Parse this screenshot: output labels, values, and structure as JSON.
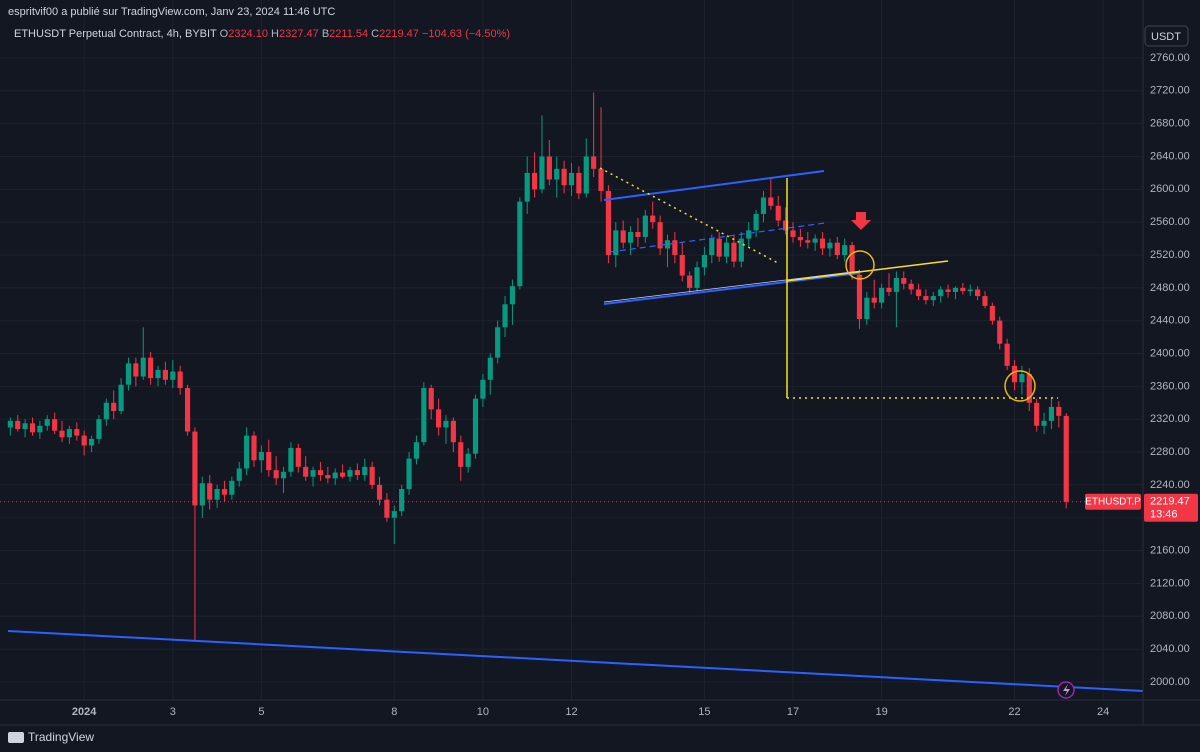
{
  "header": {
    "published": "espritvif00 a publié sur TradingView.com, Janv 23, 2024 11:46 UTC",
    "symbol": "ETHUSDT Perpetual Contract, 4h, BYBIT",
    "legend": [
      {
        "key": "O",
        "value": "2324.10"
      },
      {
        "key": "H",
        "value": "2327.47"
      },
      {
        "key": "B",
        "value": "2211.54"
      },
      {
        "key": "C",
        "value": "2219.47"
      }
    ],
    "change": "−104.63 (−4.50%)",
    "currency": "USDT"
  },
  "footer": {
    "brand": "TradingView"
  },
  "price_tag": {
    "symbol": "ETHUSDT.P",
    "price": "2219.47",
    "countdown": "13:46"
  },
  "chart_data": {
    "type": "candlestick",
    "up_color": "#089981",
    "down_color": "#f23645",
    "ohlc": [
      [
        2310,
        2322,
        2300,
        2318
      ],
      [
        2318,
        2325,
        2305,
        2308
      ],
      [
        2308,
        2320,
        2298,
        2315
      ],
      [
        2315,
        2322,
        2300,
        2304
      ],
      [
        2304,
        2318,
        2296,
        2312
      ],
      [
        2312,
        2325,
        2306,
        2320
      ],
      [
        2320,
        2328,
        2302,
        2306
      ],
      [
        2306,
        2318,
        2292,
        2298
      ],
      [
        2298,
        2312,
        2290,
        2308
      ],
      [
        2308,
        2316,
        2294,
        2300
      ],
      [
        2300,
        2306,
        2276,
        2288
      ],
      [
        2288,
        2300,
        2280,
        2296
      ],
      [
        2296,
        2325,
        2290,
        2320
      ],
      [
        2320,
        2345,
        2312,
        2340
      ],
      [
        2340,
        2355,
        2320,
        2330
      ],
      [
        2330,
        2370,
        2326,
        2362
      ],
      [
        2362,
        2395,
        2355,
        2388
      ],
      [
        2388,
        2395,
        2360,
        2372
      ],
      [
        2372,
        2432,
        2368,
        2395
      ],
      [
        2395,
        2402,
        2362,
        2370
      ],
      [
        2370,
        2385,
        2360,
        2380
      ],
      [
        2380,
        2390,
        2362,
        2368
      ],
      [
        2368,
        2392,
        2358,
        2378
      ],
      [
        2378,
        2385,
        2350,
        2358
      ],
      [
        2358,
        2362,
        2300,
        2305
      ],
      [
        2305,
        2310,
        2050,
        2215
      ],
      [
        2215,
        2250,
        2200,
        2242
      ],
      [
        2242,
        2252,
        2210,
        2222
      ],
      [
        2222,
        2240,
        2212,
        2235
      ],
      [
        2235,
        2245,
        2220,
        2228
      ],
      [
        2228,
        2250,
        2222,
        2245
      ],
      [
        2245,
        2268,
        2238,
        2260
      ],
      [
        2260,
        2310,
        2252,
        2300
      ],
      [
        2300,
        2305,
        2262,
        2270
      ],
      [
        2270,
        2288,
        2255,
        2280
      ],
      [
        2280,
        2295,
        2250,
        2258
      ],
      [
        2258,
        2275,
        2240,
        2248
      ],
      [
        2248,
        2262,
        2230,
        2256
      ],
      [
        2256,
        2292,
        2250,
        2285
      ],
      [
        2285,
        2290,
        2255,
        2262
      ],
      [
        2262,
        2275,
        2245,
        2250
      ],
      [
        2250,
        2262,
        2238,
        2258
      ],
      [
        2258,
        2268,
        2245,
        2252
      ],
      [
        2252,
        2262,
        2242,
        2248
      ],
      [
        2248,
        2260,
        2240,
        2255
      ],
      [
        2255,
        2265,
        2248,
        2250
      ],
      [
        2250,
        2262,
        2244,
        2258
      ],
      [
        2258,
        2266,
        2246,
        2252
      ],
      [
        2252,
        2272,
        2245,
        2262
      ],
      [
        2262,
        2268,
        2235,
        2240
      ],
      [
        2240,
        2250,
        2215,
        2222
      ],
      [
        2222,
        2230,
        2195,
        2200
      ],
      [
        2200,
        2215,
        2168,
        2208
      ],
      [
        2208,
        2240,
        2202,
        2235
      ],
      [
        2235,
        2280,
        2228,
        2272
      ],
      [
        2272,
        2300,
        2265,
        2292
      ],
      [
        2292,
        2365,
        2288,
        2358
      ],
      [
        2358,
        2362,
        2320,
        2332
      ],
      [
        2332,
        2345,
        2300,
        2310
      ],
      [
        2310,
        2325,
        2290,
        2318
      ],
      [
        2318,
        2322,
        2280,
        2292
      ],
      [
        2292,
        2300,
        2245,
        2262
      ],
      [
        2262,
        2285,
        2255,
        2278
      ],
      [
        2278,
        2350,
        2272,
        2345
      ],
      [
        2345,
        2375,
        2335,
        2368
      ],
      [
        2368,
        2400,
        2350,
        2395
      ],
      [
        2395,
        2440,
        2388,
        2432
      ],
      [
        2432,
        2470,
        2420,
        2460
      ],
      [
        2460,
        2490,
        2435,
        2482
      ],
      [
        2482,
        2590,
        2478,
        2585
      ],
      [
        2585,
        2640,
        2570,
        2620
      ],
      [
        2620,
        2645,
        2590,
        2600
      ],
      [
        2600,
        2690,
        2595,
        2640
      ],
      [
        2640,
        2660,
        2605,
        2612
      ],
      [
        2612,
        2640,
        2590,
        2625
      ],
      [
        2625,
        2635,
        2595,
        2605
      ],
      [
        2605,
        2632,
        2592,
        2620
      ],
      [
        2620,
        2628,
        2588,
        2595
      ],
      [
        2595,
        2662,
        2590,
        2640
      ],
      [
        2640,
        2718,
        2615,
        2625
      ],
      [
        2625,
        2700,
        2585,
        2598
      ],
      [
        2598,
        2605,
        2510,
        2520
      ],
      [
        2520,
        2560,
        2505,
        2550
      ],
      [
        2550,
        2562,
        2528,
        2535
      ],
      [
        2535,
        2555,
        2520,
        2548
      ],
      [
        2548,
        2565,
        2530,
        2542
      ],
      [
        2542,
        2575,
        2535,
        2568
      ],
      [
        2568,
        2585,
        2552,
        2560
      ],
      [
        2560,
        2568,
        2520,
        2528
      ],
      [
        2528,
        2545,
        2505,
        2538
      ],
      [
        2538,
        2548,
        2510,
        2520
      ],
      [
        2520,
        2535,
        2488,
        2495
      ],
      [
        2495,
        2500,
        2472,
        2480
      ],
      [
        2480,
        2512,
        2474,
        2505
      ],
      [
        2505,
        2530,
        2495,
        2520
      ],
      [
        2520,
        2545,
        2510,
        2540
      ],
      [
        2540,
        2548,
        2512,
        2518
      ],
      [
        2518,
        2542,
        2510,
        2535
      ],
      [
        2535,
        2545,
        2505,
        2512
      ],
      [
        2512,
        2548,
        2505,
        2540
      ],
      [
        2540,
        2560,
        2530,
        2550
      ],
      [
        2550,
        2575,
        2542,
        2570
      ],
      [
        2570,
        2598,
        2560,
        2590
      ],
      [
        2590,
        2615,
        2575,
        2580
      ],
      [
        2580,
        2592,
        2555,
        2562
      ],
      [
        2562,
        2578,
        2545,
        2550
      ],
      [
        2550,
        2560,
        2535,
        2542
      ],
      [
        2542,
        2552,
        2530,
        2538
      ],
      [
        2538,
        2548,
        2528,
        2535
      ],
      [
        2535,
        2545,
        2525,
        2540
      ],
      [
        2540,
        2548,
        2520,
        2528
      ],
      [
        2528,
        2540,
        2518,
        2535
      ],
      [
        2535,
        2542,
        2515,
        2520
      ],
      [
        2520,
        2540,
        2512,
        2532
      ],
      [
        2532,
        2536,
        2490,
        2496
      ],
      [
        2496,
        2502,
        2430,
        2442
      ],
      [
        2442,
        2475,
        2435,
        2468
      ],
      [
        2468,
        2490,
        2455,
        2462
      ],
      [
        2462,
        2485,
        2455,
        2480
      ],
      [
        2480,
        2498,
        2470,
        2475
      ],
      [
        2475,
        2500,
        2432,
        2492
      ],
      [
        2492,
        2500,
        2478,
        2485
      ],
      [
        2485,
        2490,
        2472,
        2478
      ],
      [
        2478,
        2485,
        2465,
        2470
      ],
      [
        2470,
        2478,
        2460,
        2465
      ],
      [
        2465,
        2475,
        2458,
        2470
      ],
      [
        2470,
        2482,
        2462,
        2478
      ],
      [
        2478,
        2484,
        2468,
        2475
      ],
      [
        2475,
        2482,
        2466,
        2480
      ],
      [
        2480,
        2486,
        2472,
        2476
      ],
      [
        2476,
        2484,
        2470,
        2478
      ],
      [
        2478,
        2482,
        2465,
        2470
      ],
      [
        2470,
        2476,
        2455,
        2458
      ],
      [
        2458,
        2462,
        2435,
        2440
      ],
      [
        2440,
        2445,
        2405,
        2412
      ],
      [
        2412,
        2418,
        2380,
        2385
      ],
      [
        2385,
        2392,
        2355,
        2365
      ],
      [
        2365,
        2385,
        2350,
        2375
      ],
      [
        2375,
        2382,
        2330,
        2340
      ],
      [
        2340,
        2345,
        2305,
        2312
      ],
      [
        2312,
        2328,
        2302,
        2318
      ],
      [
        2318,
        2345,
        2308,
        2335
      ],
      [
        2335,
        2342,
        2310,
        2324.1
      ],
      [
        2324.1,
        2327.47,
        2211.54,
        2219.47
      ]
    ],
    "xlim": [
      -1.4,
      153.4
    ],
    "xticks": [
      {
        "value": 10,
        "label": "2024"
      },
      {
        "value": 22,
        "label": "3"
      },
      {
        "value": 34,
        "label": "5"
      },
      {
        "value": 52,
        "label": "8"
      },
      {
        "value": 64,
        "label": "10"
      },
      {
        "value": 76,
        "label": "12"
      },
      {
        "value": 94,
        "label": "15"
      },
      {
        "value": 106,
        "label": "17"
      },
      {
        "value": 118,
        "label": "19"
      },
      {
        "value": 136,
        "label": "22"
      },
      {
        "value": 148,
        "label": "24"
      }
    ],
    "ylim": [
      1978,
      2830.6
    ],
    "yticks": [
      {
        "value": 2000,
        "label": "2000.00"
      },
      {
        "value": 2040,
        "label": "2040.00"
      },
      {
        "value": 2080,
        "label": "2080.00"
      },
      {
        "value": 2120,
        "label": "2120.00"
      },
      {
        "value": 2160,
        "label": "2160.00"
      },
      {
        "value": 2200,
        "label": "2200.00"
      },
      {
        "value": 2240,
        "label": "2240.00"
      },
      {
        "value": 2280,
        "label": "2280.00"
      },
      {
        "value": 2320,
        "label": "2320.00"
      },
      {
        "value": 2360,
        "label": "2360.00"
      },
      {
        "value": 2400,
        "label": "2400.00"
      },
      {
        "value": 2440,
        "label": "2440.00"
      },
      {
        "value": 2480,
        "label": "2480.00"
      },
      {
        "value": 2520,
        "label": "2520.00"
      },
      {
        "value": 2560,
        "label": "2560.00"
      },
      {
        "value": 2600,
        "label": "2600.00"
      },
      {
        "value": 2640,
        "label": "2640.00"
      },
      {
        "value": 2680,
        "label": "2680.00"
      },
      {
        "value": 2720,
        "label": "2720.00"
      },
      {
        "value": 2760,
        "label": "2760.00"
      }
    ],
    "grid": true
  }
}
